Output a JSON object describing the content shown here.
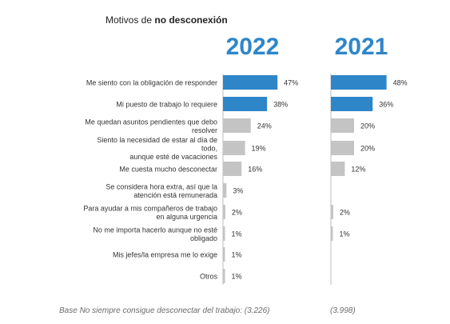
{
  "header": {
    "subtitle_prefix": "Motivos de ",
    "subtitle_bold": "no desconexión"
  },
  "chart_data": {
    "type": "bar",
    "orientation": "horizontal",
    "categories": [
      [
        "Me siento con la obligación de responder"
      ],
      [
        "Mi puesto de trabajo lo requiere"
      ],
      [
        "Me quedan asuntos pendientes que debo",
        "resolver"
      ],
      [
        "Siento la necesidad de estar al día de",
        "todo,",
        "aunque esté de vacaciones"
      ],
      [
        "Me cuesta mucho desconectar"
      ],
      [
        "Se considera hora extra, así que la",
        "atención está remunerada"
      ],
      [
        "Para ayudar a mis compañeros de trabajo",
        "en alguna urgencia"
      ],
      [
        "No me importa hacerlo aunque no esté",
        "obligado"
      ],
      [
        "Mis jefes/la empresa me lo exige"
      ],
      [
        "Otros"
      ]
    ],
    "series": [
      {
        "name": "2022",
        "values": [
          47,
          38,
          24,
          19,
          16,
          3,
          2,
          1,
          1,
          1
        ],
        "labels": [
          "47%",
          "38%",
          "24%",
          "19%",
          "16%",
          "3%",
          "2%",
          "1%",
          "1%",
          "1%"
        ]
      },
      {
        "name": "2021",
        "values": [
          48,
          36,
          20,
          20,
          12,
          null,
          2,
          1,
          null,
          null
        ],
        "labels": [
          "48%",
          "36%",
          "20%",
          "20%",
          "12%",
          "",
          "2%",
          "1%",
          "",
          ""
        ]
      }
    ],
    "highlight_color": "#2E86C9",
    "default_color": "#C4C4C4",
    "year_color": "#2E86C9",
    "axis_color": "#BDBDBD"
  },
  "footnotes": {
    "left": "Base No siempre consigue desconectar del trabajo: (3.226)",
    "right": "(3.998)"
  }
}
